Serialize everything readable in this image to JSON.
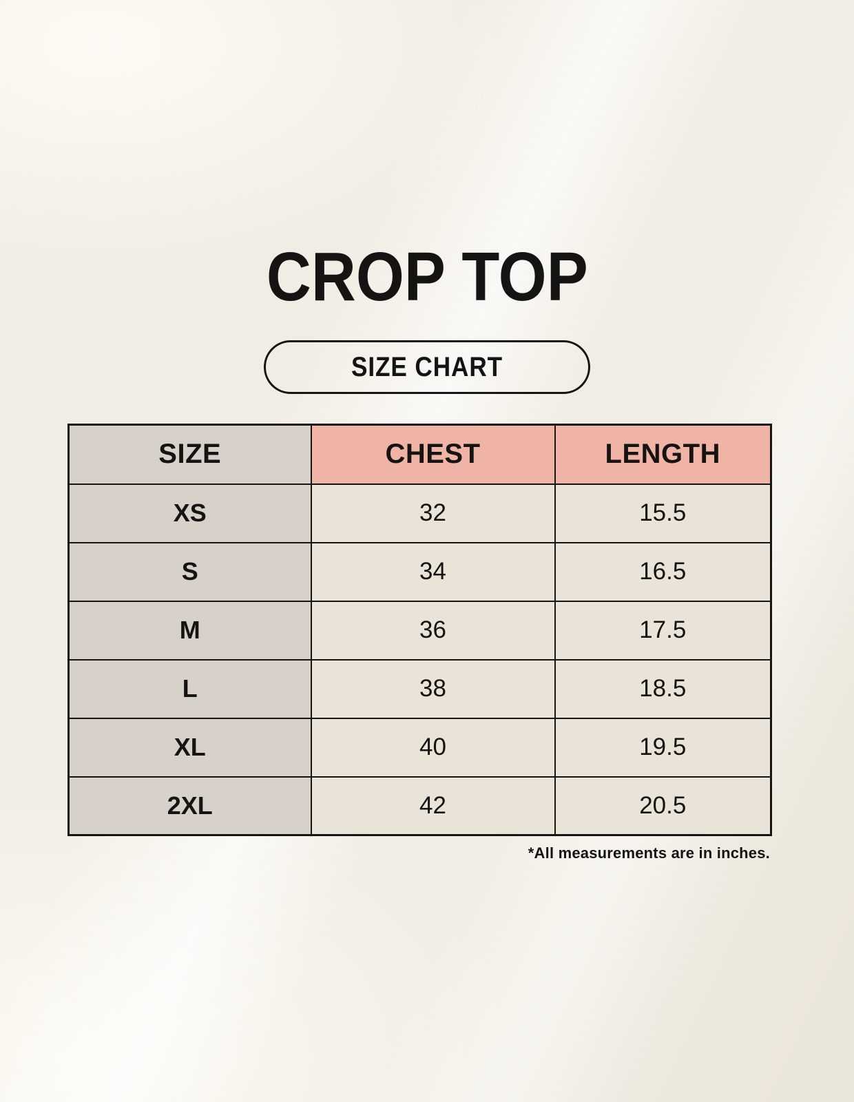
{
  "title": "CROP TOP",
  "badge": {
    "label": "SIZE CHART"
  },
  "footnote": "*All measurements are in inches.",
  "colors": {
    "background": "#f1ede4",
    "size_column_bg": "#d8d1ca",
    "accent_header_bg": "#f0b4a6",
    "cell_bg": "#eae3d8",
    "table_border": "#161514",
    "text": "#151413"
  },
  "chart_data": {
    "type": "table",
    "title": "CROP TOP",
    "subtitle": "SIZE CHART",
    "units": "inches",
    "columns": [
      "SIZE",
      "CHEST",
      "LENGTH"
    ],
    "rows": [
      [
        "XS",
        "32",
        "15.5"
      ],
      [
        "S",
        "34",
        "16.5"
      ],
      [
        "M",
        "36",
        "17.5"
      ],
      [
        "L",
        "38",
        "18.5"
      ],
      [
        "XL",
        "40",
        "19.5"
      ],
      [
        "2XL",
        "42",
        "20.5"
      ]
    ]
  }
}
